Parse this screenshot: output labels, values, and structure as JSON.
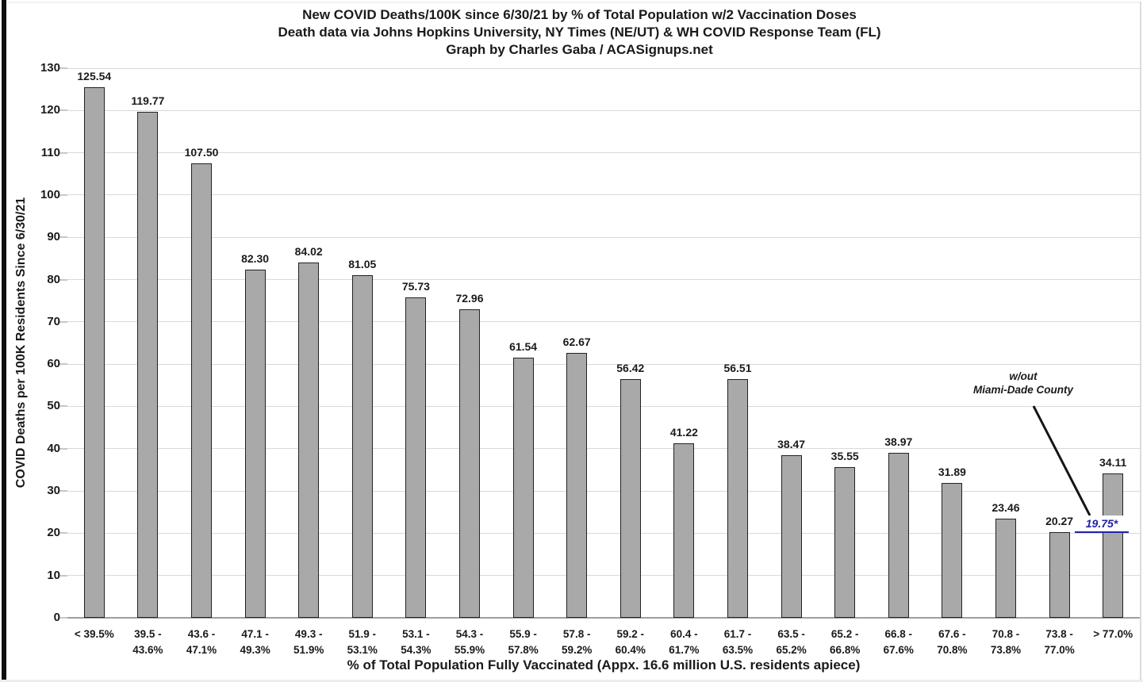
{
  "chart_data": {
    "type": "bar",
    "title": "New COVID Deaths/100K since 6/30/21 by % of Total Population w/2 Vaccination Doses",
    "subtitle": "Death data via Johns Hopkins University, NY Times (NE/UT) & WH COVID Response Team (FL)",
    "credit": "Graph by Charles Gaba / ACASignups.net",
    "xlabel": "% of Total Population Fully Vaccinated (Appx. 16.6 million U.S. residents apiece)",
    "ylabel": "COVID Deaths per 100K Residents Since 6/30/21",
    "ylim": [
      0,
      130
    ],
    "ytick_step": 10,
    "grid": true,
    "legend": "none",
    "bar_color": "#a9a9a9",
    "bar_border_color": "#222222",
    "grid_color": "#d9d9d9",
    "categories": [
      "< 39.5%",
      "39.5 -\n43.6%",
      "43.6 -\n47.1%",
      "47.1 -\n49.3%",
      "49.3 -\n51.9%",
      "51.9 -\n53.1%",
      "53.1 -\n54.3%",
      "54.3 -\n55.9%",
      "55.9 -\n57.8%",
      "57.8 -\n59.2%",
      "59.2 -\n60.4%",
      "60.4 -\n61.7%",
      "61.7 -\n63.5%",
      "63.5 -\n65.2%",
      "65.2 -\n66.8%",
      "66.8 -\n67.6%",
      "67.6 -\n70.8%",
      "70.8 -\n73.8%",
      "73.8 -\n77.0%",
      "> 77.0%"
    ],
    "values": [
      125.54,
      119.77,
      107.5,
      82.3,
      84.02,
      81.05,
      75.73,
      72.96,
      61.54,
      62.67,
      56.42,
      41.22,
      56.51,
      38.47,
      35.55,
      38.97,
      31.89,
      23.46,
      20.27,
      34.11
    ],
    "annotation": {
      "line1": "w/out",
      "line2": "Miami-Dade County",
      "value_label": "19.75*",
      "value": 19.75,
      "applies_to_category": "> 77.0%",
      "color": "#2222aa"
    }
  }
}
